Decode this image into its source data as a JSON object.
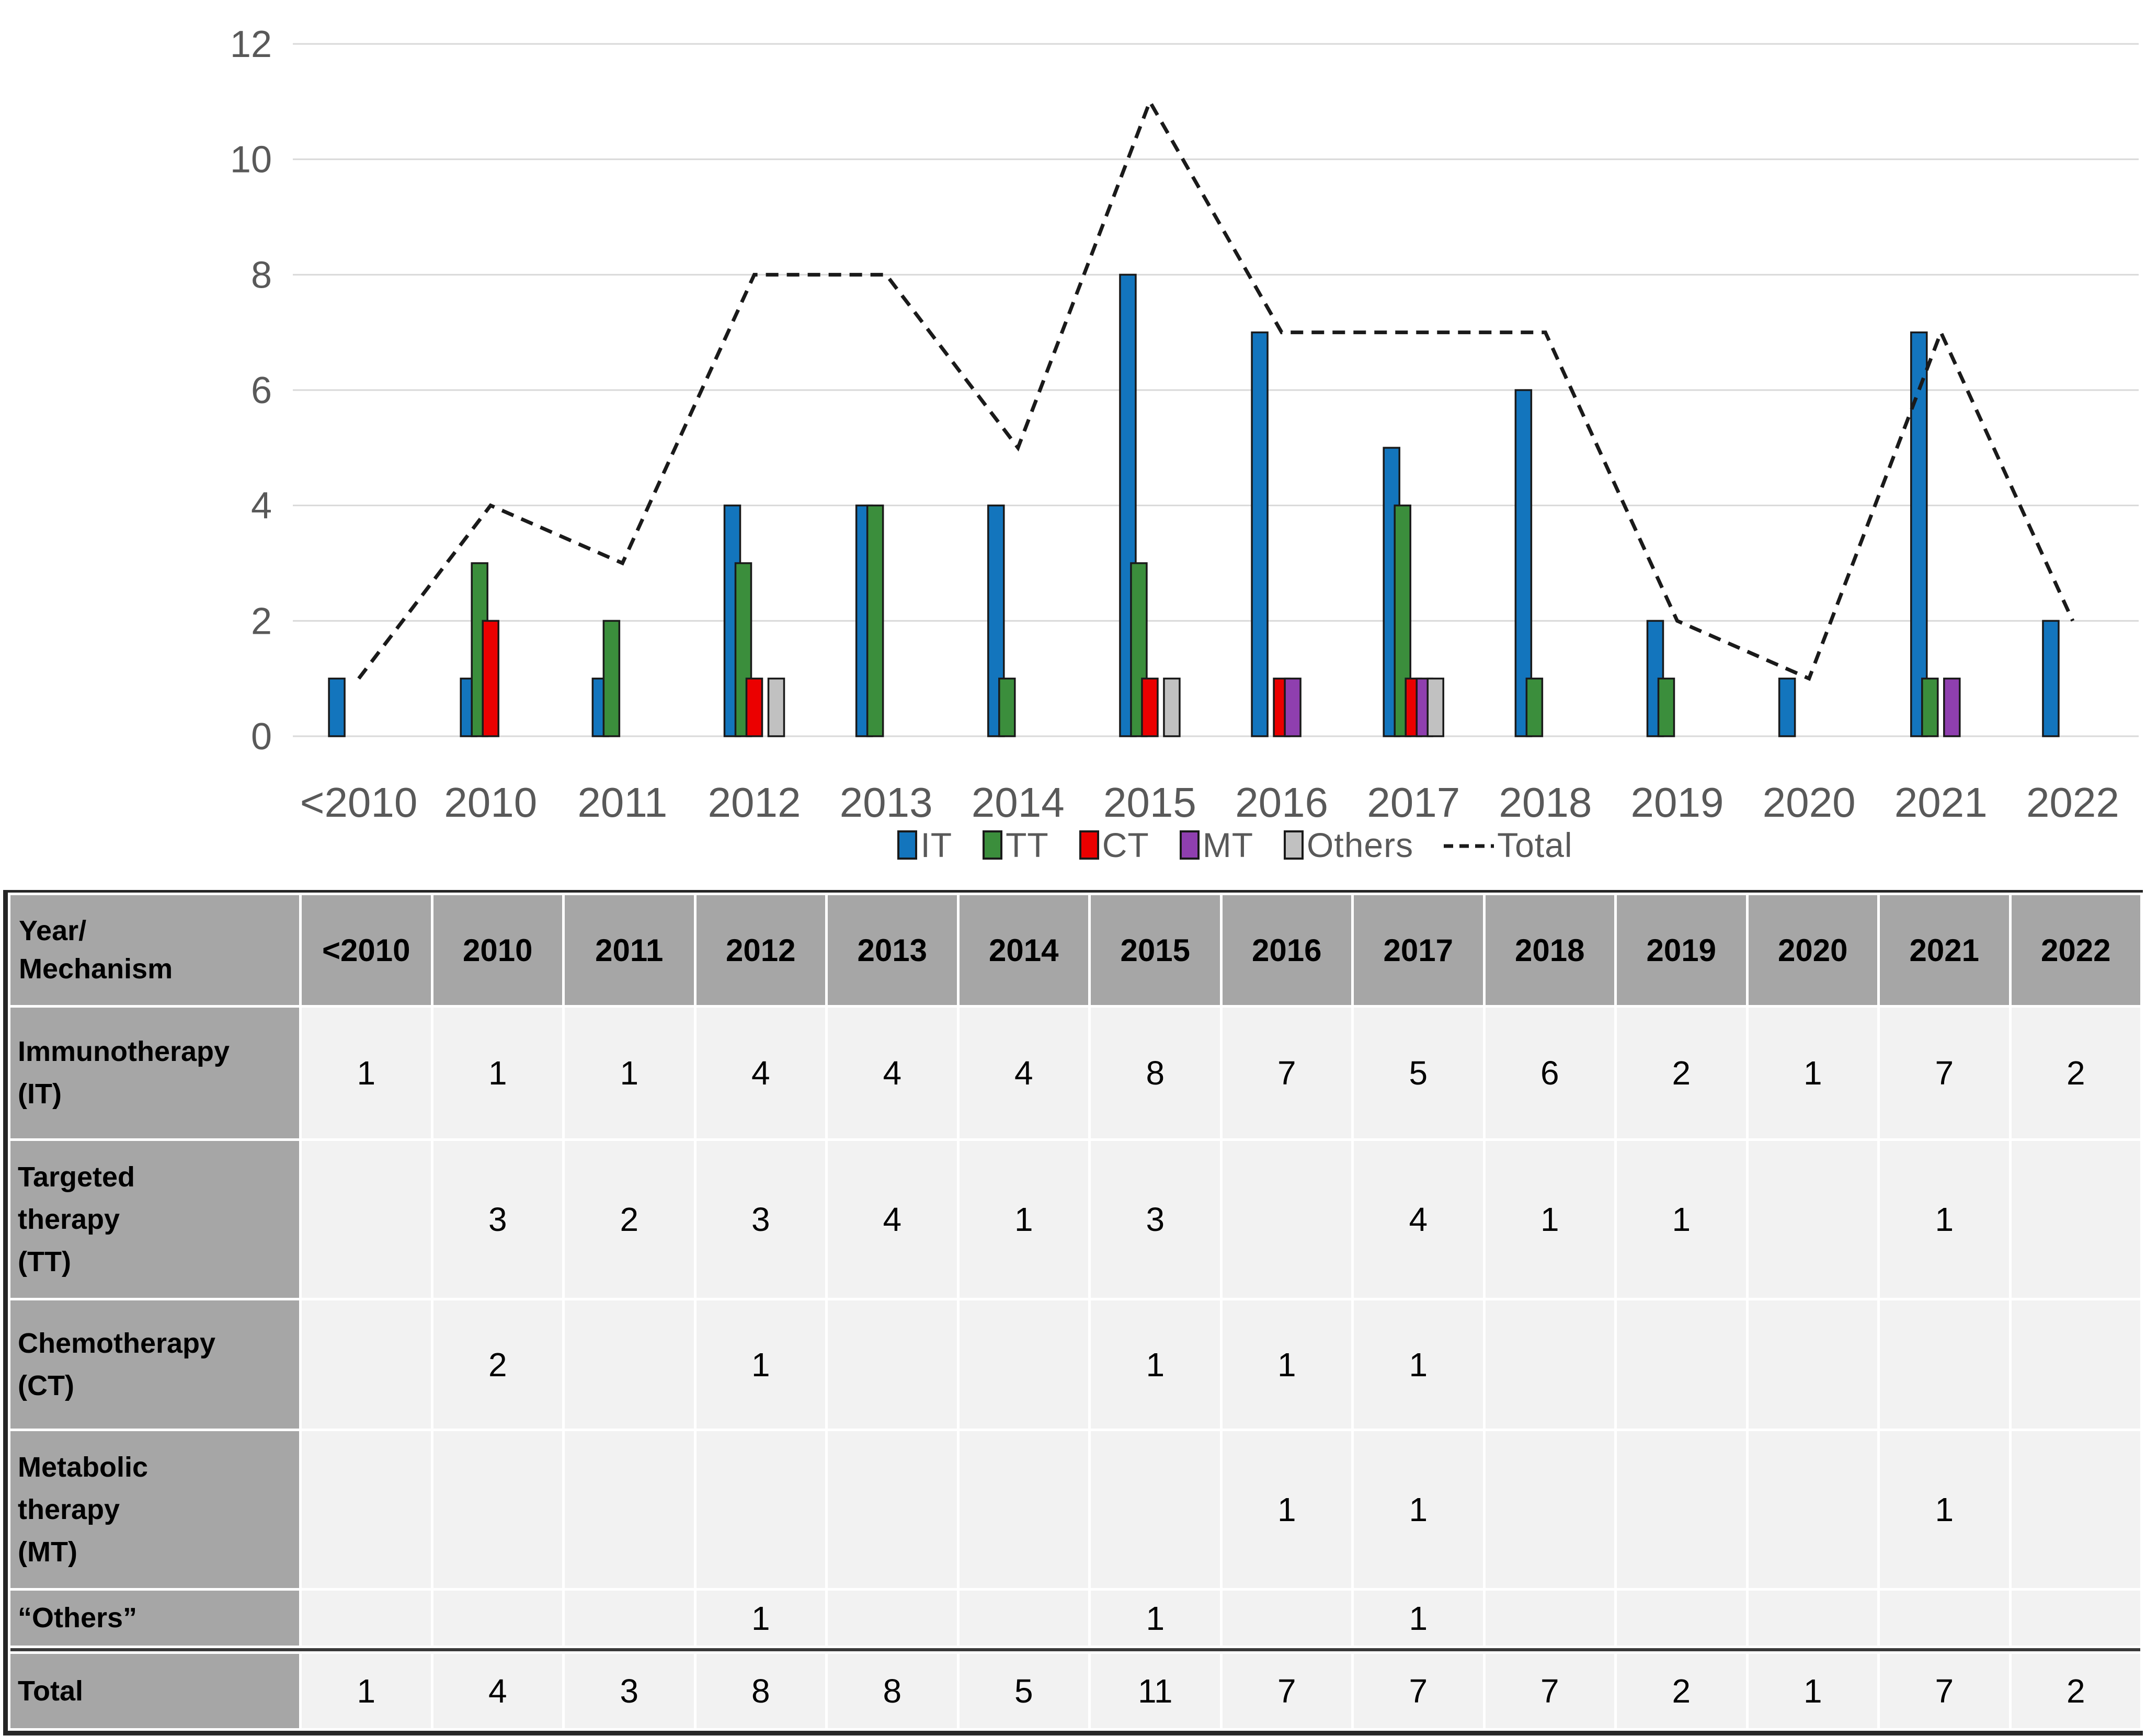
{
  "figure": {
    "kind": "clustered bar chart with dashed total line and data table"
  },
  "chart_data": {
    "type": "bar",
    "categories": [
      "<2010",
      "2010",
      "2011",
      "2012",
      "2013",
      "2014",
      "2015",
      "2016",
      "2017",
      "2018",
      "2019",
      "2020",
      "2021",
      "2022"
    ],
    "series": [
      {
        "name": "IT",
        "type": "bar",
        "color": "#1375BD",
        "values": [
          1,
          1,
          1,
          4,
          4,
          4,
          8,
          7,
          5,
          6,
          2,
          1,
          7,
          2
        ]
      },
      {
        "name": "TT",
        "type": "bar",
        "color": "#3B8E3C",
        "values": [
          null,
          3,
          2,
          3,
          4,
          1,
          3,
          null,
          4,
          1,
          1,
          null,
          1,
          null
        ]
      },
      {
        "name": "CT",
        "type": "bar",
        "color": "#EB0000",
        "values": [
          null,
          2,
          null,
          1,
          null,
          null,
          1,
          1,
          1,
          null,
          null,
          null,
          null,
          null
        ]
      },
      {
        "name": "MT",
        "type": "bar",
        "color": "#8F3FAF",
        "values": [
          null,
          null,
          null,
          null,
          null,
          null,
          null,
          1,
          1,
          null,
          null,
          null,
          1,
          null
        ]
      },
      {
        "name": "Others",
        "type": "bar",
        "color": "#C1C1C1",
        "values": [
          null,
          null,
          null,
          1,
          null,
          null,
          1,
          null,
          1,
          null,
          null,
          null,
          null,
          null
        ]
      },
      {
        "name": "Total",
        "type": "line",
        "dashed": true,
        "color": "#1a1a1a",
        "values": [
          1,
          4,
          3,
          8,
          8,
          5,
          11,
          7,
          7,
          7,
          2,
          1,
          7,
          2
        ]
      }
    ],
    "title": "",
    "xlabel": "",
    "ylabel": "",
    "ylim": [
      0,
      12
    ],
    "y_ticks": [
      0,
      2,
      4,
      6,
      8,
      10,
      12
    ],
    "grid": true,
    "legend_position": "bottom",
    "colors": {
      "gridline": "#D9D9D9",
      "axis_text": "#595959",
      "bar_outline": "#1a1a1a"
    }
  },
  "table": {
    "corner_label": "Year/\nMechanism",
    "columns": [
      "<2010",
      "2010",
      "2011",
      "2012",
      "2013",
      "2014",
      "2015",
      "2016",
      "2017",
      "2018",
      "2019",
      "2020",
      "2021",
      "2022"
    ],
    "rows": [
      {
        "label": "Immunotherapy\n(IT)",
        "values": [
          "1",
          "1",
          "1",
          "4",
          "4",
          "4",
          "8",
          "7",
          "5",
          "6",
          "2",
          "1",
          "7",
          "2"
        ]
      },
      {
        "label": "Targeted\ntherapy\n(TT)",
        "values": [
          "",
          "3",
          "2",
          "3",
          "4",
          "1",
          "3",
          "",
          "4",
          "1",
          "1",
          "",
          "1",
          ""
        ]
      },
      {
        "label": "Chemotherapy\n(CT)",
        "values": [
          "",
          "2",
          "",
          "1",
          "",
          "",
          "1",
          "1",
          "1",
          "",
          "",
          "",
          "",
          ""
        ]
      },
      {
        "label": "Metabolic\ntherapy\n(MT)",
        "values": [
          "",
          "",
          "",
          "",
          "",
          "",
          "",
          "1",
          "1",
          "",
          "",
          "",
          "1",
          ""
        ]
      },
      {
        "label": "“Others”",
        "values": [
          "",
          "",
          "",
          "1",
          "",
          "",
          "1",
          "",
          "1",
          "",
          "",
          "",
          "",
          ""
        ]
      }
    ],
    "total_row": {
      "label": "Total",
      "values": [
        "1",
        "4",
        "3",
        "8",
        "8",
        "5",
        "11",
        "7",
        "7",
        "7",
        "2",
        "1",
        "7",
        "2"
      ]
    },
    "colors": {
      "header_bg": "#A6A6A6",
      "cell_bg": "#F2F2F2",
      "border_dark": "#262626",
      "total_divider": "#3a3a3a"
    }
  }
}
